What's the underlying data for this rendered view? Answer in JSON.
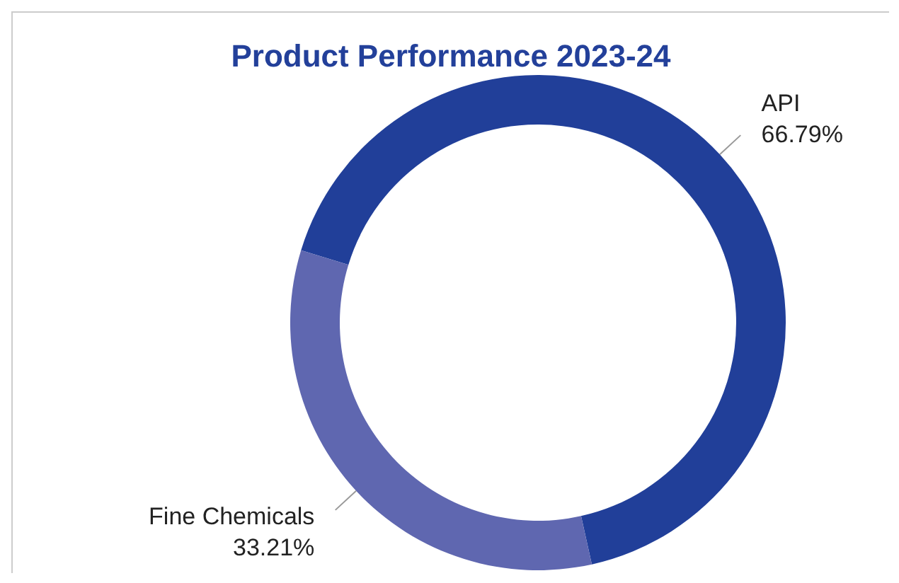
{
  "chart_data": {
    "type": "donut",
    "title": "Product Performance 2023-24",
    "categories": [
      "API",
      "Fine Chemicals"
    ],
    "values": [
      66.79,
      33.21
    ],
    "colors": [
      "#213f99",
      "#5f67b0"
    ],
    "value_labels": [
      "66.79%",
      "33.21%"
    ]
  }
}
